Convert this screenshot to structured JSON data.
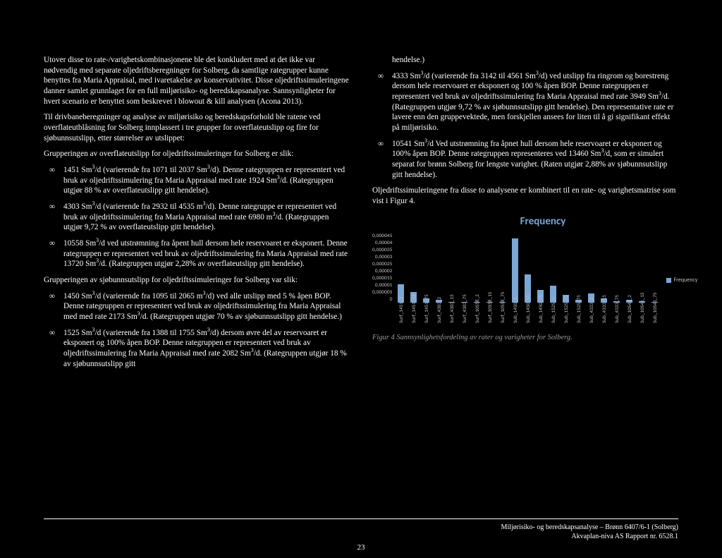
{
  "left": {
    "p1": "Utover disse to rate-/varighetskombinasjonene ble det konkludert med at det ikke var nødvendig med separate oljedriftsberegninger for Solberg, da samtlige rategrupper kunne benyttes fra Maria Appraisal, med ivaretakelse av konservativitet. Disse oljedriftssimuleringene danner samlet grunnlaget for en full miljørisiko- og beredskapsanalyse. Sannsynligheter for hvert scenario er benyttet som beskrevet i blowout & kill analysen (Acona 2013).",
    "p2": "Til drivbaneberegninger og analyse av miljørisiko og beredskapsforhold ble ratene ved overflateutblåsning for Solberg innplassert i tre grupper for overflateutslipp og fire for sjøbunnsutslipp, etter størrelser av utslippet:",
    "p3": "Grupperingen av overflateutslipp for oljedriftssimuleringer for Solberg er slik:",
    "surf": {
      "i1a": "1451 Sm",
      "i1b": "/d (varierende fra 1071 til 2037 Sm",
      "i1c": "/d). Denne rategruppen er representert ved bruk av oljedriftssimulering fra Maria Appraisal med rate 1924 Sm",
      "i1d": "/d. (Rategruppen utgjør 88 % av overflateutslipp gitt hendelse).",
      "i2a": "4303 Sm",
      "i2b": "/d (varierende fra 2932 til 4535 m",
      "i2c": "/d). Denne rategruppe er representert ved bruk av oljedriftssimulering fra Maria Appraisal med rate 6980 m",
      "i2d": "/d. (Rategruppen utgjør 9,72 % av overflateutslipp gitt hendelse).",
      "i3a": "10558 Sm",
      "i3b": "/d ved utstrømning fra åpent hull dersom hele reservoaret er eksponert. Denne rategruppen er representert ved bruk av oljedriftssimulering fra Maria Appraisal med rate 13720 Sm",
      "i3c": "/d. (Rategruppen utgjør 2,28% av overflateutslipp gitt hendelse)."
    },
    "p4": "Grupperingen av sjøbunnsutslipp for oljedriftssimuleringer for Solberg var slik:",
    "sub": {
      "i1a": "1450 Sm",
      "i1b": "/d (varierende fra 1095 til 2065 m",
      "i1c": "/d) ved alle utslipp med 5 % åpen BOP. Denne rategruppen er representert ved bruk av oljedriftssimulering fra Maria Appraisal med med rate 2173 Sm",
      "i1d": "/d. (Rategruppen utgjør 70 % av sjøbunnsutslipp gitt hendelse.)",
      "i2a": "1525 Sm",
      "i2b": "/d (varierende fra 1388 til 1755 Sm",
      "i2c": "/d) dersom øvre del av reservoaret er eksponert og 100% åpen BOP. Denne rategruppen er representert ved bruk av oljedriftssimulering fra Maria Appraisal med rate 2082 Sm",
      "i2d": "/d. (Rategruppen utgjør 18 % av sjøbunnsutslipp gitt"
    }
  },
  "right": {
    "cont": "hendelse.)",
    "sub": {
      "i3a": "4333 Sm",
      "i3b": "/d (varierende fra 3142 til 4561 Sm",
      "i3c": "/d) ved utslipp fra ringrom og borestreng dersom hele reservoaret er eksponert og 100 % åpen BOP. Denne rategruppen er representert ved bruk av oljedriftssimulering fra Maria Appraisal med rate 3949 Sm",
      "i3d": "/d. (Rategruppen utgjør 9,72 % av sjøbunnsutslipp gitt hendelse). Den representative rate er lavere enn den gruppevektede, men forskjellen ansees for liten til å gi signifikant effekt på miljørisiko.",
      "i4a": "10541 Sm",
      "i4b": "/d Ved utstrømning fra åpnet hull dersom hele reservoaret er eksponert og 100% åpen BOP. Denne rategruppen representeres ved 13460 Sm",
      "i4c": "/d, som er simulert separat for brønn Solberg for lengste varighet. (Raten utgjør 2,88% av sjøbunnsutslipp gitt hendelse)."
    },
    "p5": "Oljedriftssimuleringene fra disse to analysene er kombinert til en rate- og varighetsmatrise som vist i Figur 4.",
    "caption": "Figur 4 Sannsynlighetsfordeling av rater og varigheter for Solberg."
  },
  "chart": {
    "title": "Frequency",
    "legend": "Frequency",
    "yticks": [
      "0,000045",
      "0,00004",
      "0,000035",
      "0,00003",
      "0,000025",
      "0,00002",
      "0,000015",
      "0,00001",
      "0,000005",
      "0"
    ],
    "ymax": 4.5e-05,
    "bar_color": "#7ba7d7",
    "bars": [
      {
        "label": "Surf_1451_2",
        "v": 1.2e-05
      },
      {
        "label": "Surf_1451_15",
        "v": 7e-06
      },
      {
        "label": "Surf_1451_75",
        "v": 3e-06
      },
      {
        "label": "Surf_4303_2",
        "v": 2e-06
      },
      {
        "label": "Surf_4303_15",
        "v": 7e-07
      },
      {
        "label": "Surf_4303_75",
        "v": 3e-07
      },
      {
        "label": "Surf_10558_2",
        "v": 3e-07
      },
      {
        "label": "Surf_10558_15",
        "v": 2e-07
      },
      {
        "label": "Surf_10558_75",
        "v": 1e-07
      },
      {
        "label": "Sub_1450_2",
        "v": 4.1e-05
      },
      {
        "label": "Sub_1450_15",
        "v": 1.8e-05
      },
      {
        "label": "Sub_1450_75",
        "v": 8e-06
      },
      {
        "label": "Sub_1525_2",
        "v": 1.1e-05
      },
      {
        "label": "Sub_1525_15",
        "v": 5e-06
      },
      {
        "label": "Sub_1525_75",
        "v": 2e-06
      },
      {
        "label": "Sub_4333_2",
        "v": 6e-06
      },
      {
        "label": "Sub_4333_15",
        "v": 3e-06
      },
      {
        "label": "Sub_4333_75",
        "v": 1e-06
      },
      {
        "label": "Sub_10541_2",
        "v": 2e-06
      },
      {
        "label": "Sub_10541_15",
        "v": 8e-07
      },
      {
        "label": "Sub_10541_75",
        "v": 3e-07
      }
    ]
  },
  "footer": {
    "line1": "Miljørisiko- og beredskapsanalyse – Brønn 6407/6-1 (Solberg)",
    "line2": "Akvaplan-niva AS Rapport nr. 6528.1",
    "page": "23"
  }
}
